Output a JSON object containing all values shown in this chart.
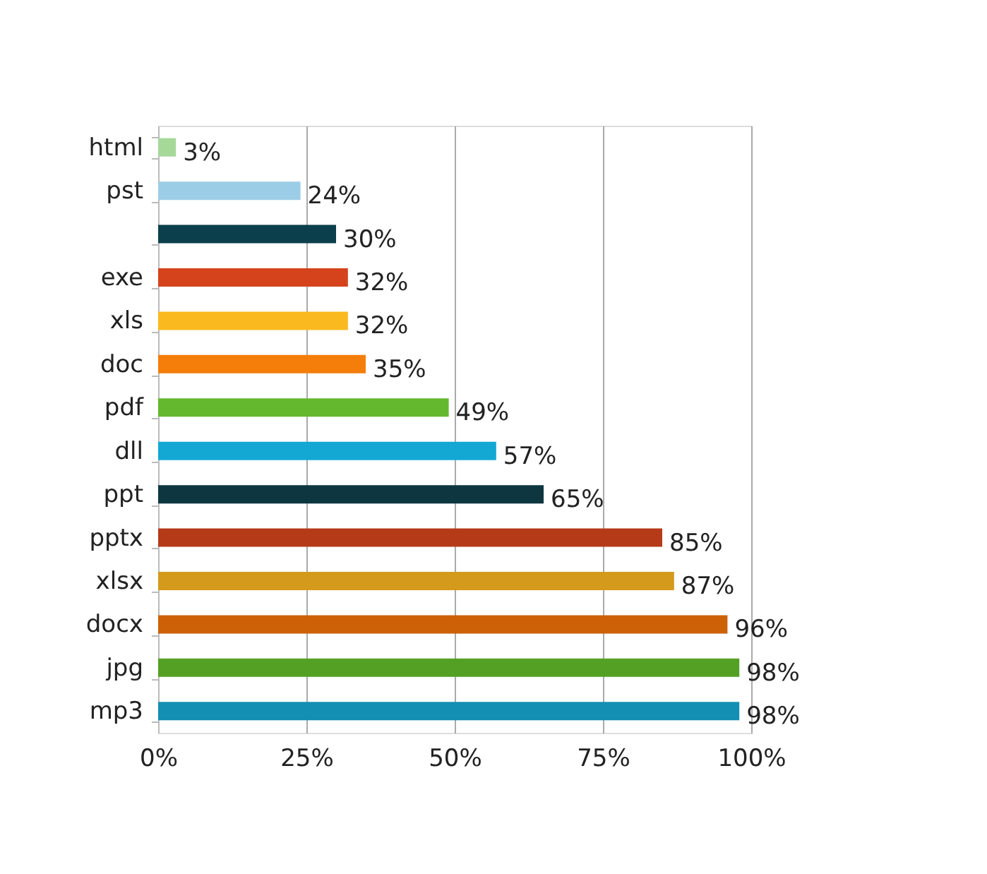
{
  "chart_data": {
    "type": "bar",
    "orientation": "horizontal",
    "categories": [
      "html",
      "pst",
      null,
      "exe",
      "xls",
      "doc",
      "pdf",
      "dll",
      "ppt",
      "pptx",
      "xlsx",
      "docx",
      "jpg",
      "mp3"
    ],
    "values": [
      3,
      24,
      30,
      32,
      32,
      35,
      49,
      57,
      65,
      85,
      87,
      96,
      98,
      98
    ],
    "colors": [
      "#a6d89a",
      "#9ccde6",
      "#0b3f4c",
      "#d4431c",
      "#fbb920",
      "#f57d0a",
      "#64b82e",
      "#13a8d4",
      "#0d3640",
      "#b53a17",
      "#d49a1c",
      "#cc6108",
      "#54a024",
      "#138fb3"
    ],
    "value_labels": [
      "3%",
      "24%",
      "30%",
      "32%",
      "32%",
      "35%",
      "49%",
      "57%",
      "65%",
      "85%",
      "87%",
      "96%",
      "98%",
      "98%"
    ],
    "xlim": [
      0,
      100
    ],
    "xticks": [
      {
        "value": 0,
        "label": "0%"
      },
      {
        "value": 25,
        "label": "25%"
      },
      {
        "value": 50,
        "label": "50%"
      },
      {
        "value": 75,
        "label": "75%"
      },
      {
        "value": 100,
        "label": "100%"
      }
    ],
    "grid": "x"
  }
}
